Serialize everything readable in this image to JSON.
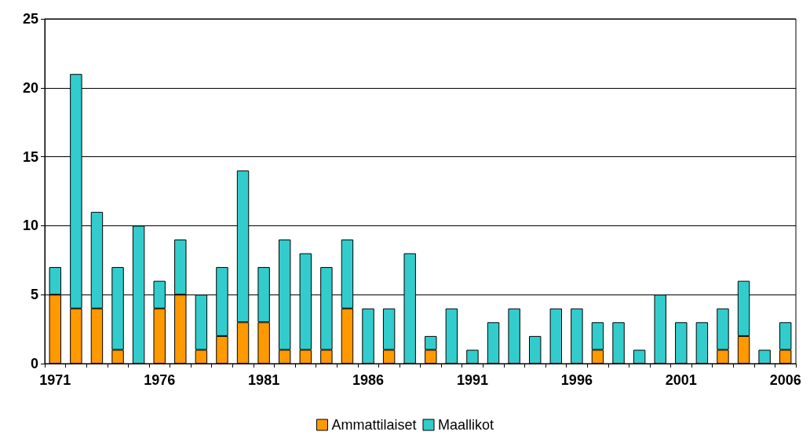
{
  "chart_data": {
    "type": "bar",
    "stacked": true,
    "categories": [
      "1971",
      null,
      null,
      null,
      null,
      "1976",
      null,
      null,
      null,
      null,
      "1981",
      null,
      null,
      null,
      null,
      "1986",
      null,
      null,
      null,
      null,
      "1991",
      null,
      null,
      null,
      null,
      "1996",
      null,
      null,
      null,
      null,
      "2001",
      null,
      null,
      null,
      null,
      "2006"
    ],
    "series": [
      {
        "name": "Ammattilaiset",
        "color": "#ff9900",
        "values": [
          5,
          4,
          4,
          1,
          0,
          4,
          5,
          1,
          2,
          3,
          3,
          1,
          1,
          1,
          4,
          0,
          1,
          0,
          1,
          0,
          0,
          0,
          0,
          0,
          0,
          0,
          1,
          0,
          0,
          0,
          0,
          0,
          1,
          2,
          0,
          1
        ]
      },
      {
        "name": "Maallikot",
        "color": "#33cccc",
        "values": [
          2,
          17,
          7,
          6,
          10,
          2,
          4,
          4,
          5,
          11,
          4,
          8,
          7,
          6,
          5,
          4,
          3,
          8,
          1,
          4,
          1,
          3,
          4,
          2,
          4,
          4,
          2,
          3,
          1,
          5,
          3,
          3,
          3,
          4,
          1,
          2
        ]
      }
    ],
    "ylim": [
      0,
      25
    ],
    "yticks": [
      0,
      5,
      10,
      15,
      20,
      25
    ],
    "grid": "y",
    "legend": "bottom"
  }
}
